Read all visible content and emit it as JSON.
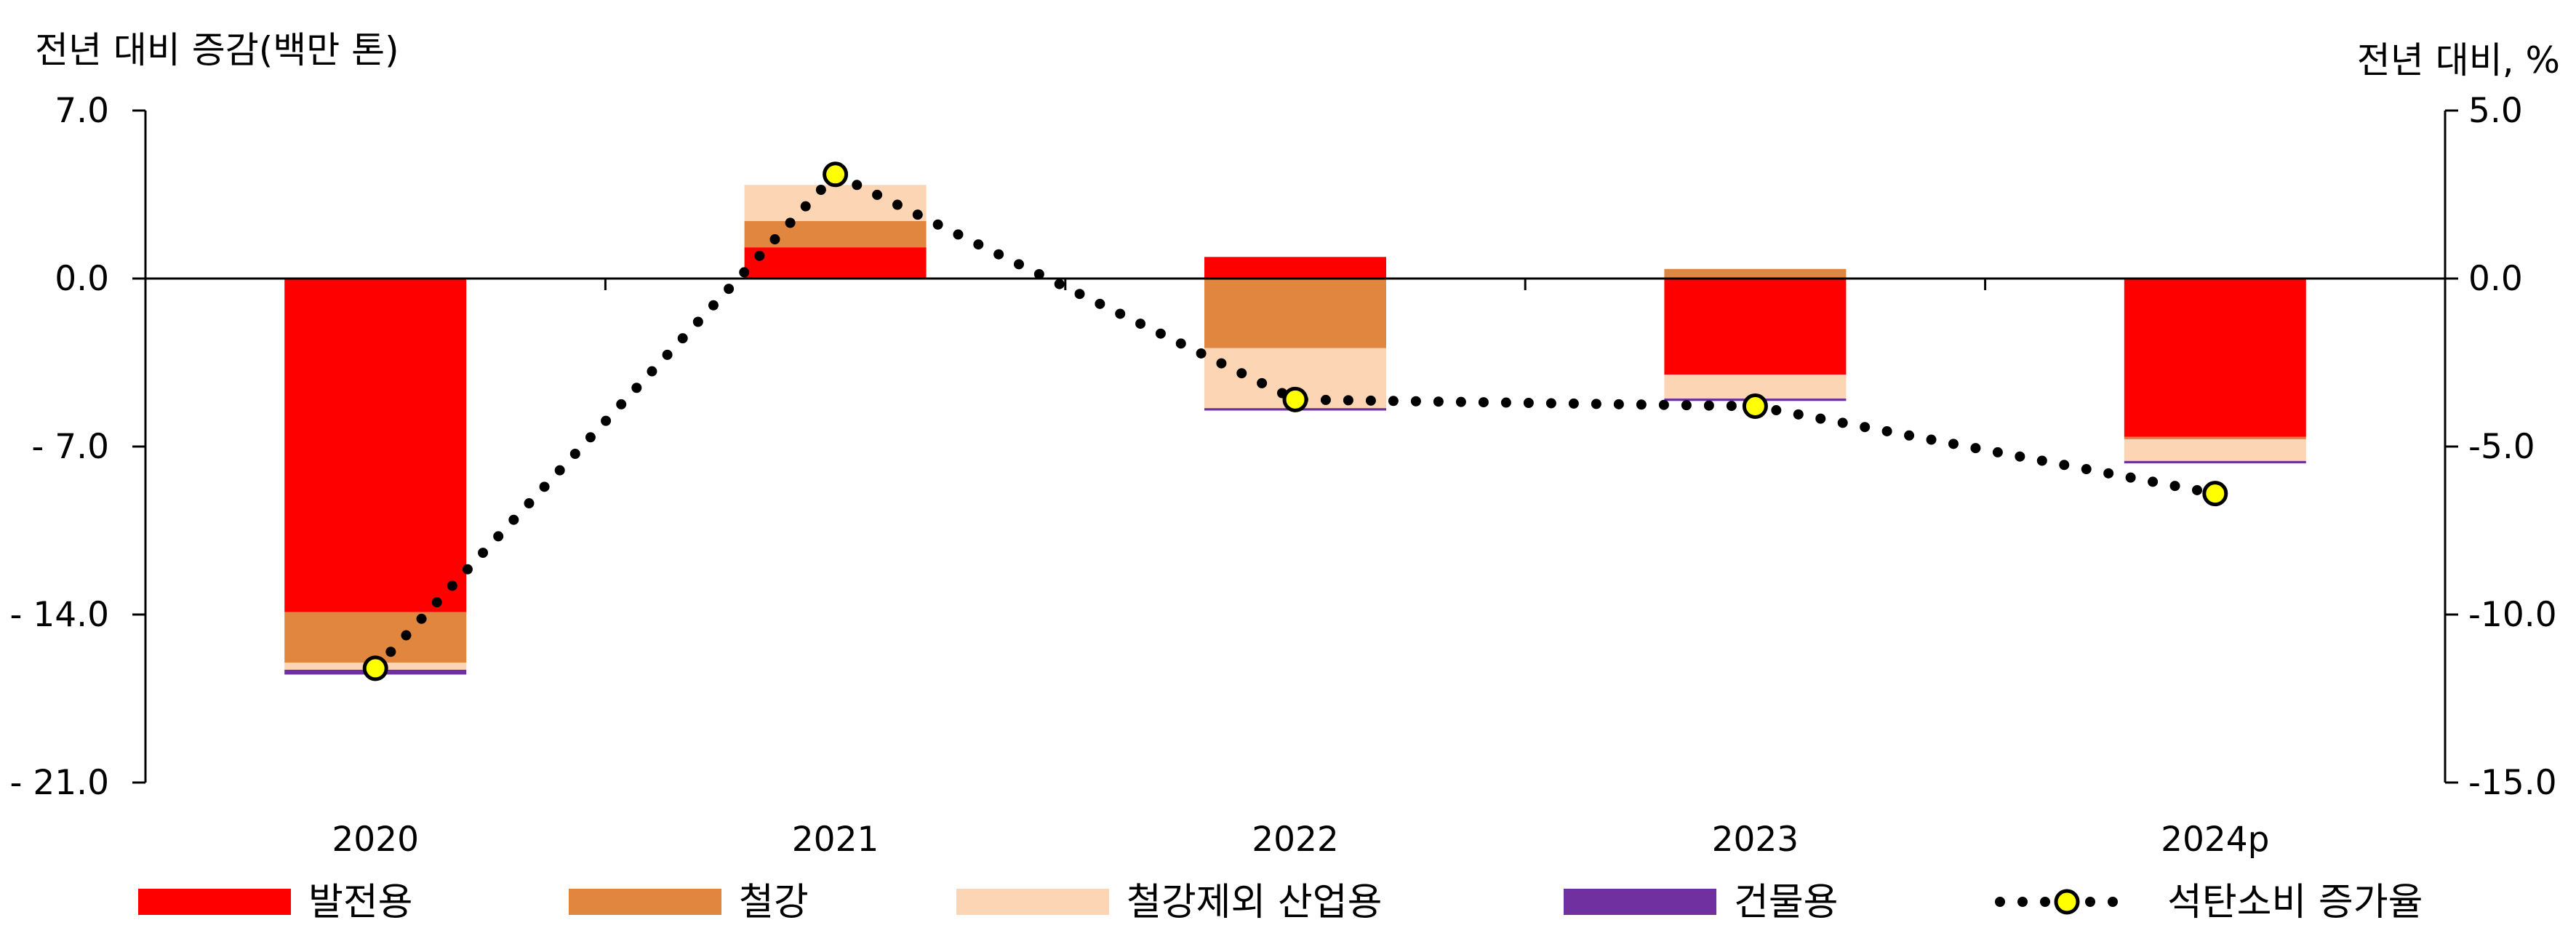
{
  "chart_data": {
    "type": "bar",
    "stacked": true,
    "title": "",
    "categories": [
      "2020",
      "2021",
      "2022",
      "2023",
      "2024p"
    ],
    "y_left": {
      "label": "전년 대비 증감(백만 톤)",
      "ylim": [
        -21.0,
        7.0
      ],
      "ticks": [
        7.0,
        0.0,
        -7.0,
        -14.0,
        -21.0
      ],
      "tick_labels": [
        "7.0",
        "0.0",
        "- 7.0",
        "- 14.0",
        "- 21.0"
      ]
    },
    "y_right": {
      "label": "전년 대비, %",
      "ylim": [
        -15.0,
        5.0
      ],
      "ticks": [
        5.0,
        0.0,
        -5.0,
        -10.0,
        -15.0
      ],
      "tick_labels": [
        "5.0",
        "0.0",
        "-5.0",
        "-10.0",
        "-15.0"
      ]
    },
    "series": [
      {
        "name": "발전용",
        "color": "#ff0000",
        "values": [
          -13.9,
          1.3,
          0.9,
          -4.0,
          -6.6
        ]
      },
      {
        "name": "철강",
        "color": "#e0863e",
        "values": [
          -2.1,
          1.1,
          -2.9,
          0.4,
          -0.1
        ]
      },
      {
        "name": "철강제외 산업용",
        "color": "#fcd5b5",
        "values": [
          -0.3,
          1.5,
          -2.5,
          -1.0,
          -0.9
        ]
      },
      {
        "name": "건물용",
        "color": "#7030a0",
        "values": [
          -0.2,
          0.0,
          -0.1,
          -0.1,
          -0.1
        ]
      }
    ],
    "line": {
      "name": "석탄소비 증가율",
      "axis": "right",
      "marker_color": "#ffff00",
      "values": [
        -11.6,
        3.1,
        -3.6,
        -3.8,
        -6.4
      ]
    },
    "grid": false,
    "legend_position": "bottom"
  }
}
